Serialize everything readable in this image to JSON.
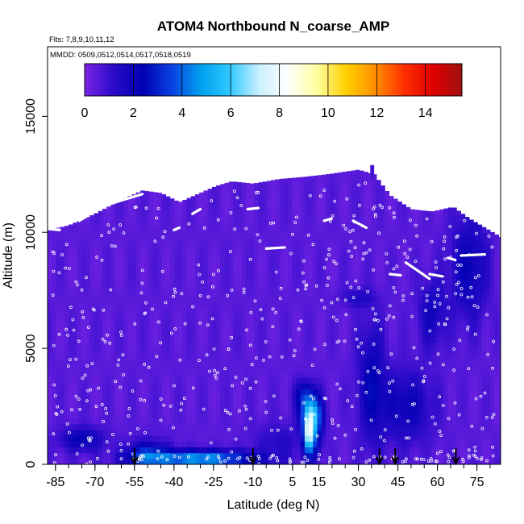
{
  "chart_data": {
    "type": "heatmap",
    "title": "ATOM4 Northbound N_coarse_AMP",
    "subtitle_flights": "Flts: 7,8,9,10,11,12",
    "subtitle_dates": "MMDD: 0509,0512,0514,0517,0518,0519",
    "xlabel": "Latitude (deg N)",
    "ylabel": "Altitude (m)",
    "xlim": [
      -88,
      84
    ],
    "ylim": [
      0,
      18000
    ],
    "x_ticks": [
      -85,
      -70,
      -55,
      -40,
      -25,
      -10,
      5,
      15,
      30,
      45,
      60,
      75
    ],
    "x_tick_labels": [
      "-85",
      "-70",
      "-55",
      "-40",
      "-25",
      "-10",
      "5",
      "15",
      "30",
      "45",
      "60",
      "75"
    ],
    "y_ticks": [
      0,
      5000,
      10000,
      15000
    ],
    "y_tick_labels": [
      "0",
      "5000",
      "10000",
      "15000"
    ],
    "colorbar": {
      "range": [
        0,
        15.5
      ],
      "ticks": [
        0,
        2,
        4,
        6,
        8,
        10,
        12,
        14
      ],
      "tick_labels": [
        "0",
        "2",
        "4",
        "6",
        "8",
        "10",
        "12",
        "14"
      ],
      "colors": [
        "#7b25e6",
        "#2a0ac8",
        "#0000b4",
        "#0a40e0",
        "#00a0f0",
        "#30c8ff",
        "#c8f0ff",
        "#ffffff",
        "#ffffa0",
        "#ffd000",
        "#ff9000",
        "#ff3000",
        "#e00000",
        "#a01010"
      ]
    },
    "arrow_latitudes": [
      -55,
      -10,
      38,
      44,
      67
    ],
    "background_value": 0.5,
    "grid": false,
    "legend": "colorbar-top"
  }
}
